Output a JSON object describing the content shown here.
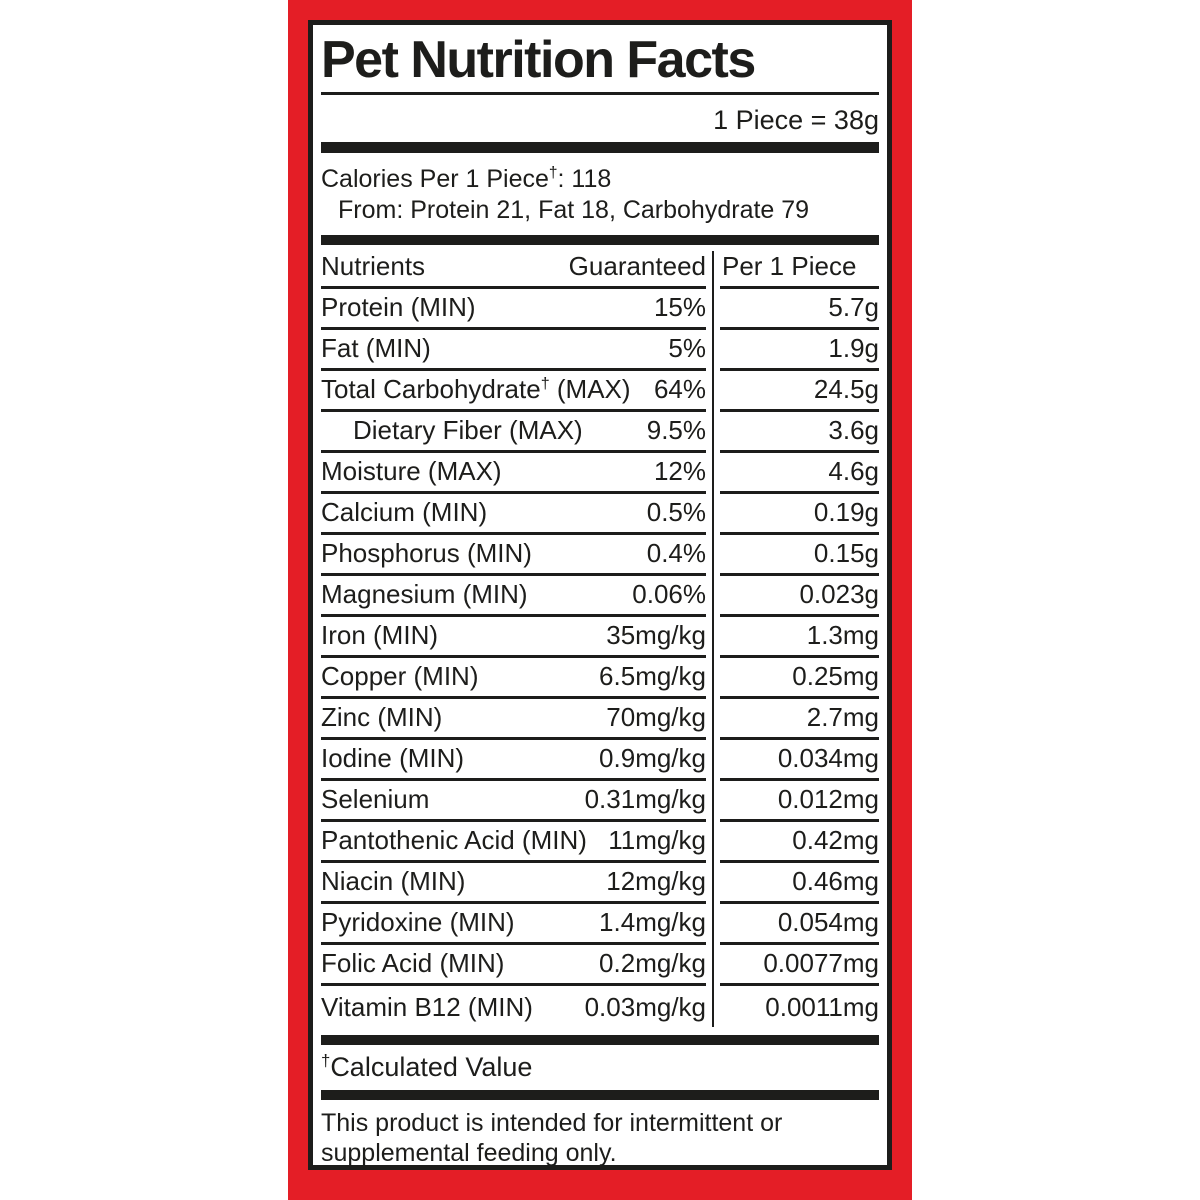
{
  "label": {
    "title": "Pet Nutrition Facts",
    "serving": "1 Piece = 38g",
    "calories": {
      "prefix": "Calories Per 1 Piece",
      "dagger": "†",
      "suffix": ": 118",
      "from": "From: Protein 21, Fat 18, Carbohydrate 79"
    },
    "table": {
      "headers": {
        "nutrients": "Nutrients",
        "guaranteed": "Guaranteed",
        "per_piece": "Per 1 Piece"
      },
      "rows": [
        {
          "name": "Protein (MIN)",
          "guaranteed": "15%",
          "per_piece": "5.7g"
        },
        {
          "name": "Fat (MIN)",
          "guaranteed": "5%",
          "per_piece": "1.9g"
        },
        {
          "name_pre": "Total Carbohydrate",
          "dagger": "†",
          "name_post": " (MAX)",
          "guaranteed": "64%",
          "per_piece": "24.5g"
        },
        {
          "name": "Dietary Fiber (MAX)",
          "indent": true,
          "guaranteed": "9.5%",
          "per_piece": "3.6g"
        },
        {
          "name": "Moisture (MAX)",
          "guaranteed": "12%",
          "per_piece": "4.6g"
        },
        {
          "name": "Calcium (MIN)",
          "guaranteed": "0.5%",
          "per_piece": "0.19g"
        },
        {
          "name": "Phosphorus (MIN)",
          "guaranteed": "0.4%",
          "per_piece": "0.15g"
        },
        {
          "name": "Magnesium (MIN)",
          "guaranteed": "0.06%",
          "per_piece": "0.023g"
        },
        {
          "name": "Iron (MIN)",
          "guaranteed": "35mg/kg",
          "per_piece": "1.3mg"
        },
        {
          "name": "Copper (MIN)",
          "guaranteed": "6.5mg/kg",
          "per_piece": "0.25mg"
        },
        {
          "name": "Zinc (MIN)",
          "guaranteed": "70mg/kg",
          "per_piece": "2.7mg"
        },
        {
          "name": "Iodine (MIN)",
          "guaranteed": "0.9mg/kg",
          "per_piece": "0.034mg"
        },
        {
          "name": "Selenium",
          "guaranteed": "0.31mg/kg",
          "per_piece": "0.012mg"
        },
        {
          "name": "Pantothenic Acid (MIN)",
          "guaranteed": "11mg/kg",
          "per_piece": "0.42mg"
        },
        {
          "name": "Niacin (MIN)",
          "guaranteed": "12mg/kg",
          "per_piece": "0.46mg"
        },
        {
          "name": "Pyridoxine (MIN)",
          "guaranteed": "1.4mg/kg",
          "per_piece": "0.054mg"
        },
        {
          "name": "Folic Acid (MIN)",
          "guaranteed": "0.2mg/kg",
          "per_piece": "0.0077mg"
        },
        {
          "name": "Vitamin B12 (MIN)",
          "guaranteed": "0.03mg/kg",
          "per_piece": "0.0011mg"
        }
      ]
    },
    "footnote": {
      "dagger": "†",
      "text": "Calculated Value"
    },
    "disclaimer": "This product is intended for intermittent or supplemental feeding only.",
    "colors": {
      "frame_red": "#e41e26",
      "ink_black": "#1d1d1b"
    }
  }
}
